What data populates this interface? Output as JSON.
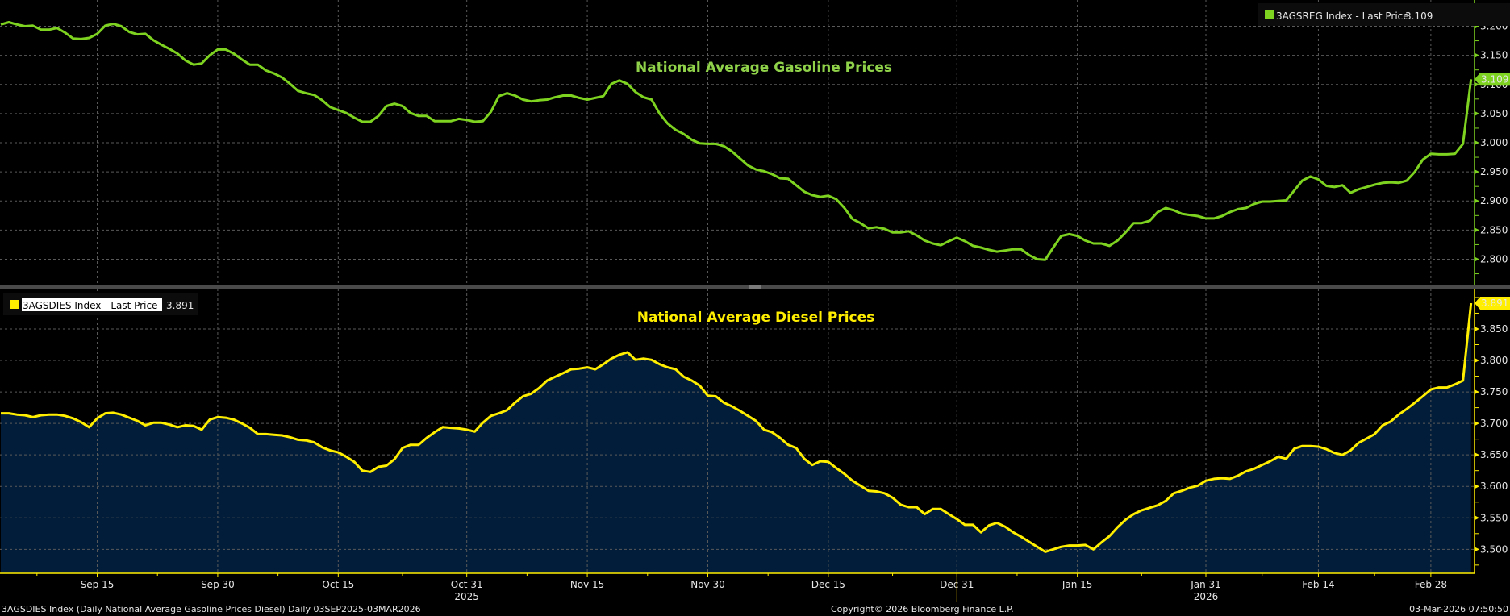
{
  "chart_data": [
    {
      "type": "line",
      "panel": "top",
      "title": "National Average Gasoline Prices",
      "color": "#7ed321",
      "legend": {
        "label": "3AGSREG Index - Last Price",
        "value": "3.109",
        "placement": "top-right"
      },
      "last_price_tag": "3.109",
      "ylim": [
        2.755,
        3.245
      ],
      "yticks": [
        "3.200",
        "3.150",
        "3.100",
        "3.050",
        "3.000",
        "2.950",
        "2.900",
        "2.850",
        "2.800"
      ],
      "grid": true,
      "series": [
        {
          "name": "3AGSREG Index",
          "values": [
            3.203,
            3.207,
            3.203,
            3.2,
            3.201,
            3.194,
            3.194,
            3.197,
            3.189,
            3.179,
            3.178,
            3.18,
            3.187,
            3.201,
            3.204,
            3.2,
            3.19,
            3.186,
            3.187,
            3.176,
            3.168,
            3.161,
            3.153,
            3.141,
            3.134,
            3.136,
            3.15,
            3.16,
            3.16,
            3.153,
            3.143,
            3.134,
            3.134,
            3.124,
            3.119,
            3.112,
            3.101,
            3.089,
            3.085,
            3.082,
            3.073,
            3.061,
            3.056,
            3.051,
            3.043,
            3.036,
            3.036,
            3.046,
            3.063,
            3.067,
            3.063,
            3.051,
            3.046,
            3.046,
            3.037,
            3.037,
            3.037,
            3.041,
            3.039,
            3.036,
            3.037,
            3.053,
            3.08,
            3.085,
            3.081,
            3.074,
            3.071,
            3.073,
            3.074,
            3.078,
            3.081,
            3.081,
            3.077,
            3.074,
            3.077,
            3.08,
            3.101,
            3.107,
            3.101,
            3.087,
            3.078,
            3.074,
            3.05,
            3.033,
            3.022,
            3.015,
            3.005,
            2.999,
            2.998,
            2.998,
            2.994,
            2.985,
            2.973,
            2.961,
            2.954,
            2.951,
            2.946,
            2.939,
            2.938,
            2.927,
            2.916,
            2.91,
            2.907,
            2.909,
            2.903,
            2.888,
            2.869,
            2.862,
            2.853,
            2.855,
            2.852,
            2.846,
            2.846,
            2.848,
            2.841,
            2.832,
            2.827,
            2.824,
            2.831,
            2.837,
            2.831,
            2.823,
            2.82,
            2.816,
            2.813,
            2.815,
            2.817,
            2.817,
            2.807,
            2.8,
            2.799,
            2.82,
            2.84,
            2.843,
            2.84,
            2.832,
            2.827,
            2.827,
            2.823,
            2.832,
            2.846,
            2.862,
            2.862,
            2.866,
            2.881,
            2.888,
            2.884,
            2.878,
            2.876,
            2.874,
            2.87,
            2.87,
            2.874,
            2.881,
            2.886,
            2.888,
            2.895,
            2.899,
            2.899,
            2.9,
            2.901,
            2.918,
            2.935,
            2.942,
            2.937,
            2.926,
            2.924,
            2.927,
            2.914,
            2.92,
            2.924,
            2.928,
            2.931,
            2.932,
            2.931,
            2.935,
            2.95,
            2.971,
            2.981,
            2.98,
            2.98,
            2.981,
            2.998,
            3.109
          ]
        }
      ]
    },
    {
      "type": "area",
      "panel": "bottom",
      "title": "National Average Diesel Prices",
      "color": "#ffee00",
      "fill": "#021d39",
      "legend": {
        "label": "3AGSDIES Index - Last Price",
        "value": "3.891",
        "placement": "top-left"
      },
      "last_price_tag": "3.891",
      "ylim": [
        3.462,
        3.914
      ],
      "yticks": [
        "3.850",
        "3.800",
        "3.750",
        "3.700",
        "3.650",
        "3.600",
        "3.550",
        "3.500"
      ],
      "grid": true,
      "series": [
        {
          "name": "3AGSDIES Index",
          "values": [
            3.716,
            3.716,
            3.714,
            3.713,
            3.71,
            3.713,
            3.714,
            3.714,
            3.712,
            3.708,
            3.702,
            3.694,
            3.708,
            3.716,
            3.717,
            3.714,
            3.709,
            3.704,
            3.697,
            3.701,
            3.701,
            3.698,
            3.694,
            3.697,
            3.696,
            3.69,
            3.706,
            3.71,
            3.709,
            3.706,
            3.7,
            3.693,
            3.683,
            3.683,
            3.682,
            3.681,
            3.678,
            3.674,
            3.673,
            3.67,
            3.662,
            3.657,
            3.654,
            3.647,
            3.639,
            3.625,
            3.623,
            3.631,
            3.633,
            3.643,
            3.661,
            3.666,
            3.666,
            3.677,
            3.686,
            3.694,
            3.693,
            3.692,
            3.69,
            3.687,
            3.701,
            3.712,
            3.716,
            3.721,
            3.733,
            3.743,
            3.747,
            3.756,
            3.768,
            3.774,
            3.78,
            3.786,
            3.787,
            3.789,
            3.786,
            3.794,
            3.803,
            3.809,
            3.813,
            3.801,
            3.803,
            3.801,
            3.794,
            3.789,
            3.786,
            3.774,
            3.768,
            3.76,
            3.744,
            3.743,
            3.733,
            3.727,
            3.72,
            3.712,
            3.704,
            3.69,
            3.686,
            3.677,
            3.666,
            3.661,
            3.644,
            3.634,
            3.64,
            3.639,
            3.629,
            3.62,
            3.609,
            3.601,
            3.593,
            3.592,
            3.589,
            3.582,
            3.571,
            3.567,
            3.567,
            3.556,
            3.564,
            3.564,
            3.556,
            3.548,
            3.539,
            3.539,
            3.527,
            3.538,
            3.542,
            3.536,
            3.527,
            3.52,
            3.512,
            3.504,
            3.496,
            3.5,
            3.504,
            3.506,
            3.506,
            3.507,
            3.5,
            3.511,
            3.521,
            3.535,
            3.547,
            3.556,
            3.562,
            3.566,
            3.57,
            3.577,
            3.589,
            3.593,
            3.598,
            3.601,
            3.609,
            3.612,
            3.613,
            3.612,
            3.617,
            3.624,
            3.628,
            3.634,
            3.64,
            3.647,
            3.644,
            3.66,
            3.664,
            3.664,
            3.663,
            3.659,
            3.653,
            3.65,
            3.657,
            3.669,
            3.676,
            3.683,
            3.697,
            3.703,
            3.714,
            3.723,
            3.733,
            3.743,
            3.754,
            3.757,
            3.757,
            3.762,
            3.768,
            3.891
          ]
        }
      ]
    }
  ],
  "x_axis": {
    "tick_labels": [
      "Sep 15",
      "Sep 30",
      "Oct 15",
      "Oct 31",
      "Nov 15",
      "Nov 30",
      "Dec 15",
      "Dec 31",
      "Jan 15",
      "Jan 31",
      "Feb 14",
      "Feb 28"
    ],
    "tick_day_index": [
      12,
      27,
      42,
      58,
      73,
      88,
      103,
      119,
      134,
      150,
      164,
      178
    ],
    "year_labels": [
      {
        "label": "2025",
        "tick": 3
      },
      {
        "label": "2026",
        "tick": 9
      }
    ],
    "start_date": "03SEP2025",
    "end_date": "03MAR2026"
  },
  "footer": {
    "left": "3AGSDIES Index (Daily National Average Gasoline Prices Diesel) Daily 03SEP2025-03MAR2026",
    "center": "Copyright© 2026 Bloomberg Finance L.P.",
    "right": "03-Mar-2026 07:50:50"
  }
}
